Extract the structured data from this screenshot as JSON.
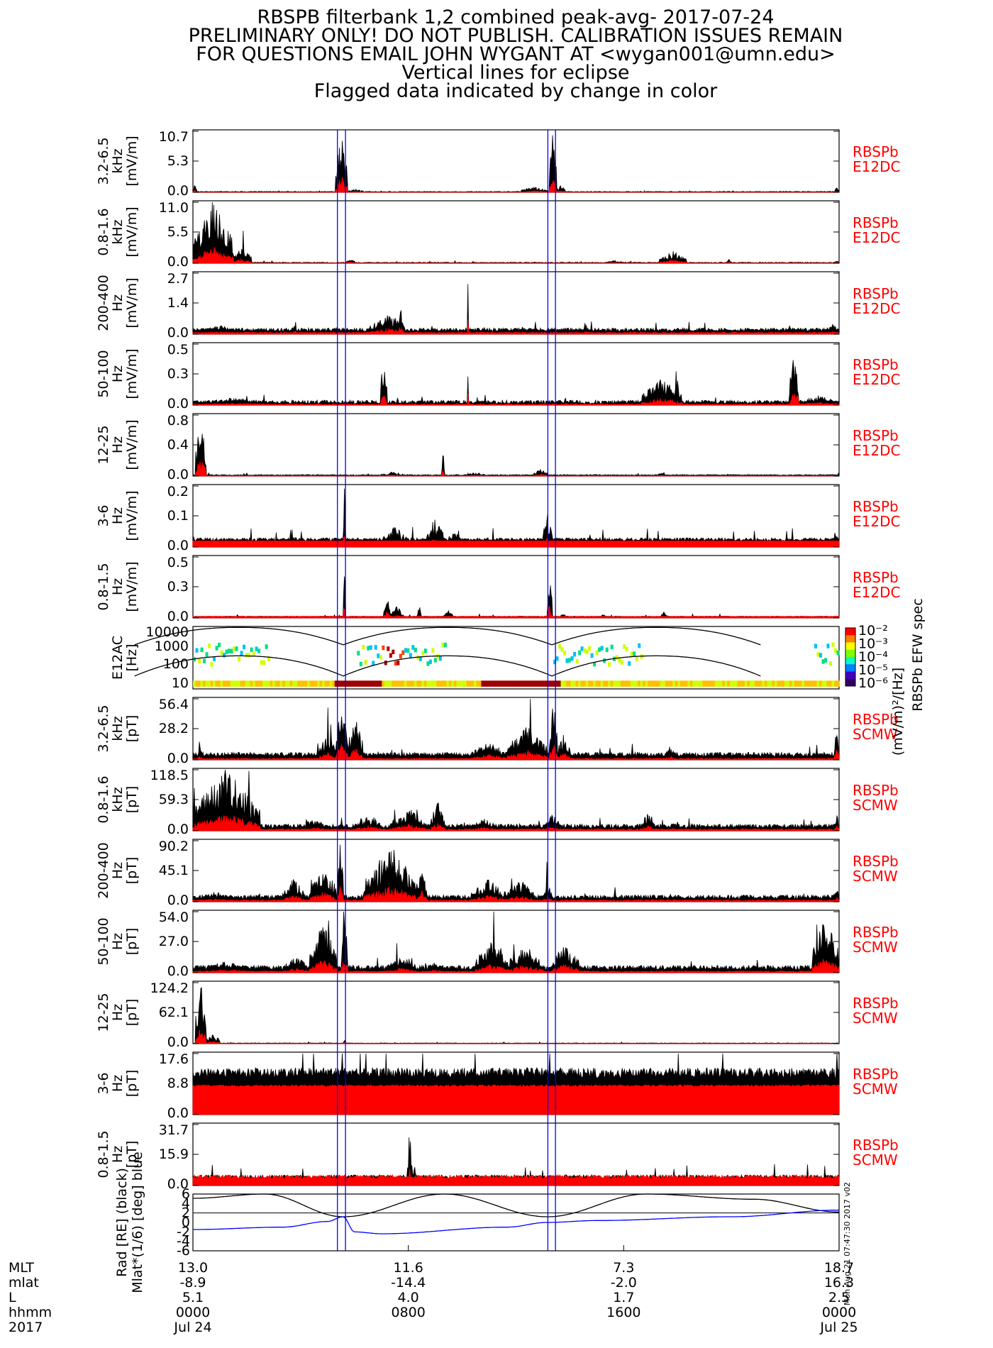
{
  "title_lines": [
    "RBSPB filterbank 1,2 combined peak-avg- 2017-07-24",
    "PRELIMINARY ONLY! DO NOT PUBLISH. CALIBRATION ISSUES REMAIN",
    "FOR QUESTIONS EMAIL JOHN WYGANT AT <wygan001@umn.edu>",
    "Vertical lines for eclipse",
    "Flagged data indicated by change in color"
  ],
  "colors": {
    "peak": "#000000",
    "avg": "#ff0000",
    "eclipse": "#0000ff",
    "tag": "#ff0000"
  },
  "side_stamp": "Mon Aug 21 07:47:30 2017 v02",
  "colorbar": {
    "title": "RBSPb EFW spec",
    "unit": "(mV/m)²/[Hz]",
    "ticks": [
      "10⁻²",
      "10⁻³",
      "10⁻⁴",
      "10⁻⁵",
      "10⁻⁶"
    ]
  },
  "x_axis": {
    "row_labels": [
      "MLT",
      "mlat",
      "L",
      "hhmm",
      "2017"
    ],
    "columns": [
      {
        "t": 0,
        "values": [
          "13.0",
          "-8.9",
          "5.1",
          "0000",
          "Jul 24"
        ]
      },
      {
        "t": 480,
        "values": [
          "11.6",
          "-14.4",
          "4.0",
          "0800",
          ""
        ]
      },
      {
        "t": 960,
        "values": [
          "7.3",
          "-2.0",
          "1.7",
          "1600",
          ""
        ]
      },
      {
        "t": 1440,
        "values": [
          "18.7",
          "16.3",
          "2.5",
          "0000",
          "Jul 25"
        ]
      }
    ]
  },
  "chart_data": {
    "type": "line",
    "x_unit": "minutes since 2017-07-24 00:00 UT",
    "x_range": [
      0,
      1440
    ],
    "eclipses": [
      [
        322,
        340
      ],
      [
        791,
        808
      ]
    ],
    "panels": [
      {
        "ylabel": [
          "3.2-6.5",
          "kHz",
          "[mV/m]"
        ],
        "ymax": 10.7,
        "ticks": [
          "10.7",
          "5.3",
          "0.0"
        ],
        "tag": [
          "RBSPb",
          "E12DC"
        ],
        "peak_base": 0.05,
        "peak_noise": 0.12,
        "avg_base": 0.02,
        "avg_noise": 0.04,
        "bursts": [
          [
            0,
            8,
            1.5
          ],
          [
            318,
            344,
            10.5
          ],
          [
            345,
            380,
            0.6
          ],
          [
            730,
            790,
            1.0
          ],
          [
            794,
            810,
            10.7
          ],
          [
            810,
            830,
            1.2
          ],
          [
            1430,
            1440,
            0.9
          ]
        ]
      },
      {
        "ylabel": [
          "0.8-1.6",
          "kHz",
          "[mV/m]"
        ],
        "ymax": 11.0,
        "ticks": [
          "11.0",
          "5.5",
          "0.0"
        ],
        "tag": [
          "RBSPb",
          "E12DC"
        ],
        "peak_base": 0.05,
        "peak_noise": 0.15,
        "avg_base": 0.02,
        "avg_noise": 0.05,
        "bursts": [
          [
            0,
            90,
            11.0
          ],
          [
            90,
            130,
            3.0
          ],
          [
            340,
            360,
            0.9
          ],
          [
            920,
            960,
            0.5
          ],
          [
            1040,
            1100,
            2.2
          ],
          [
            1190,
            1200,
            0.8
          ],
          [
            1430,
            1440,
            0.7
          ]
        ]
      },
      {
        "ylabel": [
          "200-400",
          "Hz",
          "[mV/m]"
        ],
        "ymax": 2.7,
        "ticks": [
          "2.7",
          "1.4",
          "0.0"
        ],
        "tag": [
          "RBSPb",
          "E12DC"
        ],
        "peak_base": 0.12,
        "peak_noise": 0.15,
        "avg_base": 0.04,
        "avg_noise": 0.05,
        "bursts": [
          [
            0,
            120,
            0.4
          ],
          [
            220,
            235,
            0.5
          ],
          [
            395,
            475,
            1.0
          ],
          [
            455,
            470,
            1.3
          ],
          [
            612,
            614,
            2.7
          ],
          [
            790,
            810,
            0.3
          ],
          [
            870,
            880,
            0.6
          ],
          [
            1410,
            1440,
            0.5
          ]
        ]
      },
      {
        "ylabel": [
          "50-100",
          "Hz",
          "[mV/m]"
        ],
        "ymax": 0.5,
        "ticks": [
          "0.5",
          "0.3",
          "0.0"
        ],
        "tag": [
          "RBSPb",
          "E12DC"
        ],
        "peak_base": 0.01,
        "peak_noise": 0.03,
        "avg_base": 0.002,
        "avg_noise": 0.01,
        "bursts": [
          [
            0,
            180,
            0.06
          ],
          [
            418,
            432,
            0.4
          ],
          [
            612,
            614,
            0.5
          ],
          [
            798,
            806,
            0.05
          ],
          [
            820,
            840,
            0.06
          ],
          [
            1000,
            1090,
            0.22
          ],
          [
            1330,
            1350,
            0.5
          ],
          [
            1350,
            1440,
            0.08
          ]
        ]
      },
      {
        "ylabel": [
          "12-25",
          "Hz",
          "[mV/m]"
        ],
        "ymax": 0.8,
        "ticks": [
          "0.8",
          "0.4",
          "0.0"
        ],
        "tag": [
          "RBSPb",
          "E12DC"
        ],
        "peak_base": 0.008,
        "peak_noise": 0.012,
        "avg_base": 0.002,
        "avg_noise": 0.005,
        "bursts": [
          [
            5,
            30,
            0.8
          ],
          [
            420,
            470,
            0.06
          ],
          [
            555,
            560,
            0.38
          ],
          [
            610,
            650,
            0.05
          ],
          [
            760,
            790,
            0.1
          ],
          [
            1030,
            1060,
            0.04
          ]
        ]
      },
      {
        "ylabel": [
          "3-6",
          "Hz",
          "[mV/m]"
        ],
        "ymax": 0.2,
        "ticks": [
          "0.2",
          "0.1",
          "0.0"
        ],
        "tag": [
          "RBSPb",
          "E12DC"
        ],
        "peak_base": 0.02,
        "peak_noise": 0.01,
        "avg_base": 0.02,
        "avg_noise": 0.0,
        "bursts": [
          [
            0,
            4,
            0.05
          ],
          [
            224,
            230,
            0.05
          ],
          [
            335,
            340,
            0.2
          ],
          [
            420,
            480,
            0.07
          ],
          [
            520,
            560,
            0.1
          ],
          [
            570,
            600,
            0.08
          ],
          [
            780,
            800,
            0.12
          ],
          [
            880,
            890,
            0.05
          ],
          [
            1420,
            1440,
            0.05
          ]
        ]
      },
      {
        "ylabel": [
          "0.8-1.5",
          "Hz",
          "[mV/m]"
        ],
        "ymax": 0.5,
        "ticks": [
          "0.5",
          "0.3",
          "0.0"
        ],
        "tag": [
          "RBSPb",
          "E12DC"
        ],
        "peak_base": 0.01,
        "peak_noise": 0.005,
        "avg_base": 0.01,
        "avg_noise": 0.005,
        "bursts": [
          [
            335,
            340,
            0.5
          ],
          [
            425,
            440,
            0.22
          ],
          [
            440,
            470,
            0.1
          ],
          [
            500,
            510,
            0.1
          ],
          [
            560,
            580,
            0.08
          ],
          [
            790,
            800,
            0.45
          ],
          [
            820,
            830,
            0.05
          ],
          [
            910,
            920,
            0.04
          ],
          [
            1040,
            1060,
            0.05
          ]
        ]
      }
    ],
    "spectrogram": {
      "ylabel": [
        "E12AC",
        "[Hz]"
      ],
      "ticks": [
        "10000",
        "1000",
        "100",
        "10"
      ],
      "yrange_log": [
        0.8,
        4.2
      ]
    },
    "scm_panels": [
      {
        "ylabel": [
          "3.2-6.5",
          "kHz",
          "[pT]"
        ],
        "ymax": 56.4,
        "ticks": [
          "56.4",
          "28.2",
          "0.0"
        ],
        "tag": [
          "RBSPb",
          "SCMW"
        ],
        "peak_base": 3.0,
        "peak_noise": 4.0,
        "avg_base": 0.6,
        "avg_noise": 1.0,
        "bursts": [
          [
            10,
            20,
            18
          ],
          [
            280,
            320,
            25
          ],
          [
            320,
            345,
            56.4
          ],
          [
            345,
            380,
            40
          ],
          [
            620,
            700,
            18
          ],
          [
            700,
            790,
            32
          ],
          [
            795,
            812,
            56.4
          ],
          [
            812,
            840,
            25
          ],
          [
            1050,
            1080,
            12
          ],
          [
            1430,
            1440,
            40
          ]
        ]
      },
      {
        "ylabel": [
          "0.8-1.6",
          "kHz",
          "[pT]"
        ],
        "ymax": 118.5,
        "ticks": [
          "118.5",
          "59.3",
          "0.0"
        ],
        "tag": [
          "RBSPb",
          "SCMW"
        ],
        "peak_base": 5.0,
        "peak_noise": 8.0,
        "avg_base": 1.5,
        "avg_noise": 2.5,
        "bursts": [
          [
            0,
            150,
            118.5
          ],
          [
            240,
            300,
            25
          ],
          [
            360,
            420,
            35
          ],
          [
            440,
            520,
            45
          ],
          [
            530,
            560,
            60
          ],
          [
            620,
            680,
            25
          ],
          [
            780,
            820,
            35
          ],
          [
            1000,
            1030,
            40
          ],
          [
            1060,
            1080,
            20
          ],
          [
            1430,
            1440,
            35
          ]
        ]
      },
      {
        "ylabel": [
          "200-400",
          "Hz",
          "[pT]"
        ],
        "ymax": 90.2,
        "ticks": [
          "90.2",
          "45.1",
          "0.0"
        ],
        "tag": [
          "RBSPb",
          "SCMW"
        ],
        "peak_base": 4.0,
        "peak_noise": 6.0,
        "avg_base": 1.0,
        "avg_noise": 2.0,
        "bursts": [
          [
            0,
            100,
            15
          ],
          [
            200,
            250,
            35
          ],
          [
            260,
            320,
            55
          ],
          [
            322,
            335,
            90.2
          ],
          [
            380,
            500,
            85
          ],
          [
            500,
            520,
            60
          ],
          [
            620,
            700,
            35
          ],
          [
            700,
            760,
            35
          ],
          [
            780,
            800,
            30
          ],
          [
            860,
            880,
            15
          ],
          [
            1430,
            1440,
            25
          ]
        ]
      },
      {
        "ylabel": [
          "50-100",
          "Hz",
          "[pT]"
        ],
        "ymax": 54.0,
        "ticks": [
          "54.0",
          "27.0",
          "0.0"
        ],
        "tag": [
          "RBSPb",
          "SCMW"
        ],
        "peak_base": 2.5,
        "peak_noise": 4.0,
        "avg_base": 0.6,
        "avg_noise": 1.0,
        "bursts": [
          [
            0,
            150,
            10
          ],
          [
            200,
            260,
            15
          ],
          [
            260,
            320,
            45
          ],
          [
            330,
            345,
            54
          ],
          [
            430,
            500,
            15
          ],
          [
            520,
            560,
            10
          ],
          [
            630,
            700,
            30
          ],
          [
            700,
            780,
            25
          ],
          [
            800,
            860,
            28
          ],
          [
            1380,
            1440,
            50
          ]
        ]
      },
      {
        "ylabel": [
          "12-25",
          "Hz",
          "[pT]"
        ],
        "ymax": 124.2,
        "ticks": [
          "124.2",
          "62.1",
          "0.0"
        ],
        "tag": [
          "RBSPb",
          "SCMW"
        ],
        "peak_base": 0.6,
        "peak_noise": 1.0,
        "avg_base": 0.3,
        "avg_noise": 0.4,
        "bursts": [
          [
            5,
            30,
            124.2
          ],
          [
            30,
            60,
            20
          ],
          [
            336,
            340,
            12
          ]
        ]
      },
      {
        "ylabel": [
          "3-6",
          "Hz",
          "[pT]"
        ],
        "ymax": 17.6,
        "ticks": [
          "17.6",
          "8.8",
          "0.0"
        ],
        "tag": [
          "RBSPb",
          "SCMW"
        ],
        "peak_base": 10.5,
        "peak_noise": 3.0,
        "avg_base": 8.0,
        "avg_noise": 0.6,
        "bursts": [
          [
            0,
            60,
            14
          ],
          [
            380,
            390,
            17
          ]
        ]
      },
      {
        "ylabel": [
          "0.8-1.5",
          "Hz",
          "[pT]"
        ],
        "ymax": 31.7,
        "ticks": [
          "31.7",
          "15.9",
          "0.0"
        ],
        "tag": [
          "RBSPb",
          "SCMW"
        ],
        "peak_base": 3.5,
        "peak_noise": 2.0,
        "avg_base": 3.5,
        "avg_noise": 2.0,
        "bursts": [
          [
            478,
            488,
            31.7
          ],
          [
            488,
            500,
            12
          ]
        ]
      }
    ],
    "orbit": {
      "ylabel": [
        "Rad [RE] (black)",
        "Mlat*(1/6) [deg] blue"
      ],
      "ticks": [
        "6",
        "4",
        "2",
        "0",
        "-2",
        "-4",
        "-6"
      ],
      "yrange": [
        -6,
        6
      ],
      "reference_line": 2,
      "radius_black": {
        "t": [
          0,
          160,
          335,
          560,
          790,
          1010,
          1250,
          1440
        ],
        "v": [
          5.1,
          6.0,
          1.2,
          6.0,
          1.2,
          6.0,
          4.9,
          2.2
        ]
      },
      "mlat_blue": {
        "t": [
          0,
          200,
          300,
          335,
          360,
          420,
          700,
          790,
          900,
          1200,
          1440
        ],
        "v": [
          -1.5,
          -1.0,
          0.2,
          1.2,
          -2.0,
          -2.4,
          -1.0,
          0.0,
          0.4,
          1.2,
          2.6
        ]
      }
    }
  }
}
